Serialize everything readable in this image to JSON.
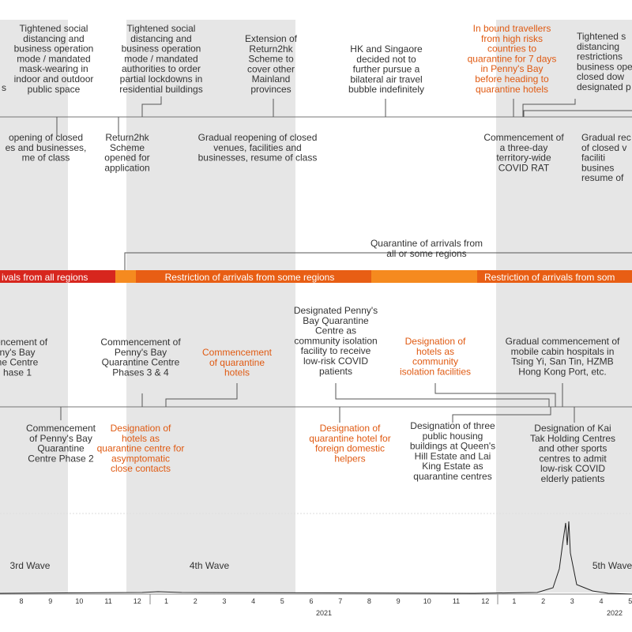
{
  "top_events": [
    [
      "s"
    ],
    [
      "Tightened social",
      "distancing and",
      "business operation",
      "mode / mandated",
      "mask-wearing in",
      "indoor and outdoor",
      "public space"
    ],
    [
      "Tightened social",
      "distancing and",
      "business operation",
      "mode / mandated",
      "authorities to order",
      "partial lockdowns in",
      "residential buildings"
    ],
    [
      "Extension of",
      "Return2hk",
      "Scheme to",
      "cover other",
      "Mainland",
      "provinces"
    ],
    [
      "HK and Singaore",
      "decided not to",
      "further pursue a",
      "bilateral air travel",
      "bubble indefinitely"
    ],
    [
      "In bound travellers",
      "from high risks",
      "countries to",
      "quarantine for 7 days",
      "in Penny's Bay",
      "before heading to",
      "quarantine hotels"
    ],
    [
      "Tightened s",
      "distancing",
      "restrictions",
      "business ope",
      "closed dow",
      "designated p"
    ]
  ],
  "top_events_below": [
    [
      "opening of closed",
      "es and businesses,",
      "me of class"
    ],
    [
      "Return2hk",
      "Scheme",
      "opened for",
      "application"
    ],
    [
      "Gradual reopening of closed",
      "venues, facilities and",
      "businesses, resume of class"
    ],
    [
      "Commencement of",
      "a three-day",
      "territory-wide",
      "COVID RAT"
    ],
    [
      "Gradual rec",
      "of closed v",
      "faciliti",
      "busines",
      "resume of"
    ]
  ],
  "quarantine_label": [
    "Quarantine of arrivals from",
    "all or some regions"
  ],
  "arrival_bar": [
    "ivals from all regions",
    "Restriction of arrivals from some regions",
    "Restriction of arrivals from som"
  ],
  "bottom_events_above": [
    [
      "mencement of",
      "ny's Bay",
      "ne Centre",
      "hase 1"
    ],
    [
      "Commencement of",
      "Penny's Bay",
      "Quarantine Centre",
      "Phases 3 & 4"
    ],
    [
      "Commencement",
      "of quarantine",
      "hotels"
    ],
    [
      "Designated Penny's",
      "Bay Quarantine",
      "Centre as",
      "community isolation",
      "facility to receive",
      "low-risk COVID",
      "patients"
    ],
    [
      "Designation of",
      "hotels as",
      "community",
      "isolation facilities"
    ],
    [
      "Gradual commencement of",
      "mobile cabin hospitals in",
      "Tsing Yi, San Tin, HZMB",
      "Hong Kong Port, etc."
    ]
  ],
  "bottom_events_below": [
    [
      "Commencement",
      "of Penny's Bay",
      "Quarantine",
      "Centre Phase 2"
    ],
    [
      "Designation of",
      "hotels as",
      "quarantine centre for",
      "asymptomatic",
      "close contacts"
    ],
    [
      "Designation of",
      "quarantine hotel for",
      "foreign domestic",
      "helpers"
    ],
    [
      "Designation of three",
      "public housing",
      "buildings at Queen's",
      "Hill Estate and Lai",
      "King Estate as",
      "quarantine centres"
    ],
    [
      "Designation of Kai",
      "Tak Holding Centres",
      "and other sports",
      "centres to admit",
      "low-risk COVID",
      "elderly patients"
    ]
  ],
  "waves": [
    "3rd Wave",
    "4th Wave",
    "5th Wave"
  ],
  "months": [
    "8",
    "9",
    "10",
    "11",
    "12",
    "1",
    "2",
    "3",
    "4",
    "5",
    "6",
    "7",
    "8",
    "9",
    "10",
    "11",
    "12",
    "1",
    "2",
    "3",
    "4",
    "5"
  ],
  "years": [
    "2021",
    "2022"
  ]
}
